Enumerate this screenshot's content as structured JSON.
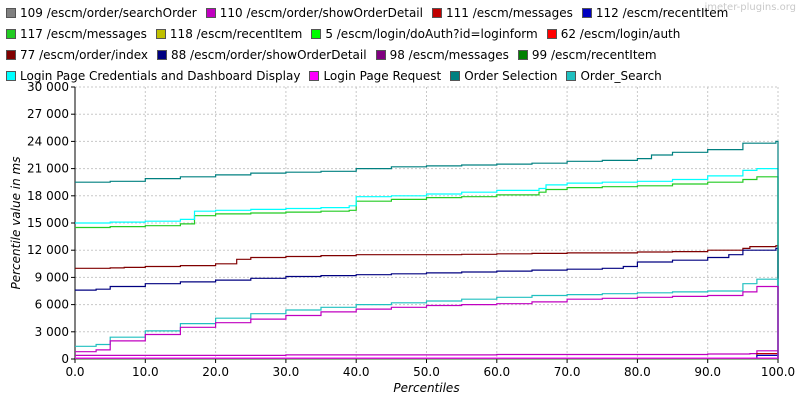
{
  "watermark": "jmeter-plugins.org",
  "chart_data": {
    "type": "line",
    "xlabel": "Percentiles",
    "ylabel": "Percentile value in ms",
    "xlim": [
      0,
      100
    ],
    "ylim": [
      0,
      30000
    ],
    "grid": true,
    "legend_position": "top",
    "x_ticks": [
      "0.0",
      "10.0",
      "20.0",
      "30.0",
      "40.0",
      "50.0",
      "60.0",
      "70.0",
      "80.0",
      "90.0",
      "100.0"
    ],
    "y_ticks": [
      "0",
      "3 000",
      "6 000",
      "9 000",
      "12 000",
      "15 000",
      "18 000",
      "21 000",
      "24 000",
      "27 000",
      "30 000"
    ],
    "series": [
      {
        "name": "109 /escm/order/searchOrder",
        "color": "#808080",
        "x": [
          0,
          100
        ],
        "y": [
          50,
          100
        ]
      },
      {
        "name": "110 /escm/order/showOrderDetail",
        "color": "#c000c0",
        "x": [
          0,
          30,
          60,
          90,
          96,
          97,
          100
        ],
        "y": [
          400,
          450,
          500,
          550,
          600,
          900,
          900
        ]
      },
      {
        "name": "111 /escm/messages",
        "color": "#c00000",
        "x": [
          0,
          95,
          97,
          100
        ],
        "y": [
          30,
          40,
          600,
          700
        ]
      },
      {
        "name": "112 /escm/recentItem",
        "color": "#0000c0",
        "x": [
          0,
          95,
          97,
          100
        ],
        "y": [
          30,
          40,
          400,
          500
        ]
      },
      {
        "name": "117 /escm/messages",
        "color": "#22cc22",
        "x": [
          0,
          5,
          10,
          15,
          17,
          20,
          25,
          30,
          35,
          39,
          40,
          45,
          50,
          55,
          60,
          66,
          67,
          70,
          75,
          80,
          85,
          90,
          95,
          97,
          99.7,
          100
        ],
        "y": [
          14500,
          14600,
          14700,
          14900,
          15800,
          16000,
          16100,
          16200,
          16300,
          16400,
          17400,
          17600,
          17800,
          17900,
          18100,
          18400,
          18700,
          18900,
          19000,
          19100,
          19300,
          19500,
          19800,
          20100,
          20100,
          0
        ]
      },
      {
        "name": "118 /escm/recentItem",
        "color": "#c0c000",
        "x": [
          0,
          100
        ],
        "y": [
          20,
          50
        ]
      },
      {
        "name": "5 /escm/login/doAuth?id=loginform",
        "color": "#00ff00",
        "x": [
          0,
          100
        ],
        "y": [
          20,
          40
        ]
      },
      {
        "name": "62 /escm/login/auth",
        "color": "#ff0000",
        "x": [
          0,
          100
        ],
        "y": [
          20,
          40
        ]
      },
      {
        "name": "77 /escm/order/index",
        "color": "#800000",
        "x": [
          0,
          5,
          7,
          10,
          15,
          20,
          23,
          25,
          30,
          35,
          40,
          45,
          50,
          55,
          60,
          65,
          70,
          75,
          80,
          85,
          90,
          95,
          96,
          99.7,
          100
        ],
        "y": [
          10000,
          10050,
          10100,
          10200,
          10300,
          10500,
          11000,
          11200,
          11300,
          11400,
          11500,
          11500,
          11500,
          11550,
          11600,
          11650,
          11700,
          11700,
          11800,
          11850,
          12000,
          12200,
          12400,
          12500,
          0
        ]
      },
      {
        "name": "88 /escm/order/showOrderDetail",
        "color": "#000080",
        "x": [
          0,
          3,
          5,
          10,
          15,
          20,
          25,
          30,
          35,
          40,
          45,
          50,
          55,
          60,
          65,
          70,
          75,
          78,
          80,
          85,
          90,
          93,
          95,
          99.7,
          100
        ],
        "y": [
          7600,
          7700,
          8000,
          8300,
          8500,
          8700,
          8900,
          9100,
          9200,
          9300,
          9400,
          9500,
          9600,
          9700,
          9800,
          9900,
          10000,
          10200,
          10700,
          10900,
          11200,
          11500,
          12000,
          12200,
          0
        ]
      },
      {
        "name": "98 /escm/messages",
        "color": "#800080",
        "x": [
          0,
          100
        ],
        "y": [
          20,
          40
        ]
      },
      {
        "name": "99 /escm/recentItem",
        "color": "#008000",
        "x": [
          0,
          100
        ],
        "y": [
          20,
          40
        ]
      },
      {
        "name": "Login Page Credentials and Dashboard Display",
        "color": "#00ffff",
        "x": [
          0,
          5,
          10,
          15,
          17,
          20,
          25,
          30,
          35,
          39,
          40,
          45,
          50,
          55,
          60,
          66,
          67,
          70,
          75,
          80,
          85,
          90,
          95,
          97,
          99.7,
          100
        ],
        "y": [
          15000,
          15100,
          15200,
          15400,
          16300,
          16400,
          16500,
          16600,
          16700,
          16900,
          17900,
          18000,
          18200,
          18400,
          18600,
          18800,
          19200,
          19400,
          19500,
          19600,
          19800,
          20200,
          20800,
          21000,
          21000,
          0
        ]
      },
      {
        "name": "Login Page Request",
        "color": "#ff00ff",
        "x": [
          0,
          100
        ],
        "y": [
          100,
          150
        ]
      },
      {
        "name": "Order Selection",
        "color": "#008080",
        "x": [
          0,
          5,
          10,
          15,
          20,
          25,
          30,
          35,
          40,
          45,
          50,
          55,
          60,
          65,
          70,
          75,
          80,
          82,
          85,
          90,
          95,
          99.7,
          100
        ],
        "y": [
          19500,
          19600,
          19900,
          20100,
          20300,
          20500,
          20600,
          20700,
          21000,
          21200,
          21300,
          21400,
          21500,
          21600,
          21800,
          21900,
          22100,
          22500,
          22800,
          23100,
          23800,
          24000,
          0
        ]
      },
      {
        "name": "Order_Search",
        "color": "#20c0c0",
        "x": [
          0,
          3,
          5,
          10,
          15,
          20,
          25,
          30,
          35,
          40,
          45,
          50,
          55,
          60,
          65,
          70,
          75,
          80,
          85,
          90,
          95,
          97,
          99.7,
          100
        ],
        "y": [
          1400,
          1600,
          2400,
          3100,
          3900,
          4500,
          5000,
          5400,
          5700,
          6000,
          6200,
          6400,
          6600,
          6800,
          7000,
          7100,
          7200,
          7300,
          7400,
          7500,
          8300,
          8800,
          8800,
          0
        ]
      },
      {
        "name": "",
        "color": "#c000c0",
        "x": [
          0,
          3,
          5,
          10,
          15,
          20,
          25,
          30,
          35,
          40,
          45,
          50,
          55,
          60,
          65,
          70,
          75,
          80,
          85,
          90,
          95,
          97,
          99.7,
          100
        ],
        "y": [
          800,
          1000,
          2000,
          2700,
          3500,
          4000,
          4400,
          4800,
          5200,
          5500,
          5700,
          5900,
          6000,
          6100,
          6300,
          6600,
          6700,
          6800,
          6900,
          7000,
          7400,
          8000,
          8000,
          0
        ]
      }
    ]
  }
}
